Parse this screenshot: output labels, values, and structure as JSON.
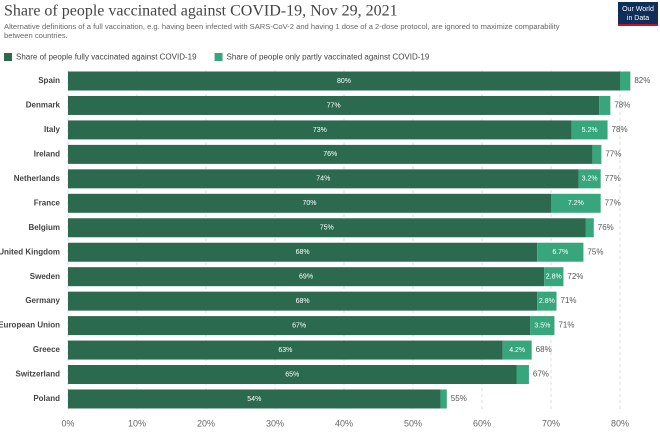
{
  "chart_data": {
    "type": "bar",
    "orientation": "horizontal",
    "stacked": true,
    "title": "Share of people vaccinated against COVID-19, Nov 29, 2021",
    "subtitle": "Alternative definitions of a full vaccination, e.g. having been infected with SARS-CoV-2 and having 1 dose of a 2-dose protocol, are ignored to maximize comparability between countries.",
    "logo_lines": [
      "Our World",
      "in Data"
    ],
    "categories": [
      "Spain",
      "Denmark",
      "Italy",
      "Ireland",
      "Netherlands",
      "France",
      "Belgium",
      "United Kingdom",
      "Sweden",
      "Germany",
      "European Union",
      "Greece",
      "Switzerland",
      "Poland"
    ],
    "series": [
      {
        "name": "Share of people fully vaccinated against COVID-19",
        "color": "#2b6a4f",
        "values": [
          80,
          77,
          73,
          76,
          74,
          70,
          75,
          68,
          69,
          68,
          67,
          63,
          65,
          54
        ],
        "value_labels": [
          "80%",
          "77%",
          "73%",
          "76%",
          "74%",
          "70%",
          "75%",
          "68%",
          "69%",
          "68%",
          "67%",
          "63%",
          "65%",
          "54%"
        ]
      },
      {
        "name": "Share of people only partly vaccinated against COVID-19",
        "color": "#38a67c",
        "values": [
          1.5,
          1.6,
          5.2,
          1.3,
          3.2,
          7.2,
          1.2,
          6.7,
          2.8,
          2.8,
          3.5,
          4.2,
          1.8,
          0.9
        ],
        "value_labels": [
          null,
          null,
          "5.2%",
          null,
          "3.2%",
          "7.2%",
          null,
          "6.7%",
          "2.8%",
          "2.8%",
          "3.5%",
          "4.2%",
          null,
          null
        ]
      }
    ],
    "total_labels": [
      "82%",
      "78%",
      "78%",
      "77%",
      "77%",
      "77%",
      "76%",
      "75%",
      "72%",
      "71%",
      "71%",
      "68%",
      "67%",
      "55%"
    ],
    "xlim": [
      0,
      85
    ],
    "xticks": [
      {
        "value": 0,
        "label": "0%"
      },
      {
        "value": 10,
        "label": "10%"
      },
      {
        "value": 20,
        "label": "20%"
      },
      {
        "value": 30,
        "label": "30%"
      },
      {
        "value": 40,
        "label": "40%"
      },
      {
        "value": 50,
        "label": "50%"
      },
      {
        "value": 60,
        "label": "60%"
      },
      {
        "value": 70,
        "label": "70%"
      },
      {
        "value": 80,
        "label": "80%"
      }
    ],
    "grid": true,
    "legend": "top"
  }
}
